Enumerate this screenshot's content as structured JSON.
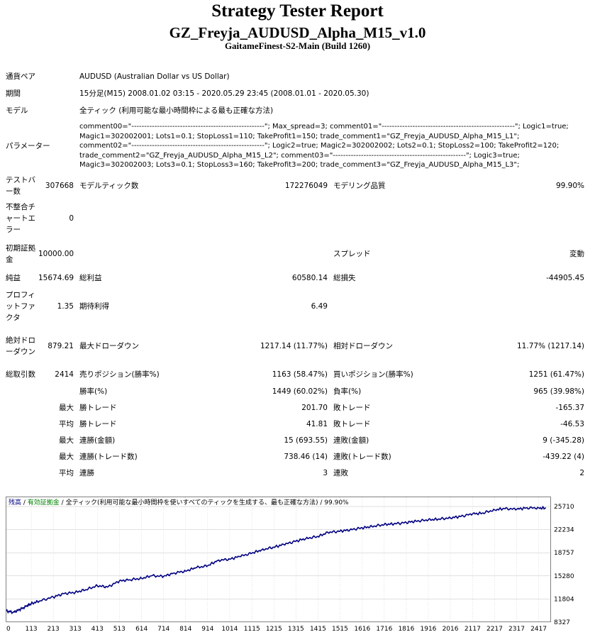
{
  "title": "Strategy Tester Report",
  "subtitle": "GZ_Freyja_AUDUSD_Alpha_M15_v1.0",
  "build": "GaitameFinest-S2-Main (Build 1260)",
  "info": {
    "pair_label": "通貨ペア",
    "pair_value": "AUDUSD (Australian Dollar vs US Dollar)",
    "period_label": "期間",
    "period_value": "15分足(M15) 2008.01.02 03:15 - 2020.05.29 23:45 (2008.01.01 - 2020.05.30)",
    "model_label": "モデル",
    "model_value": "全ティック (利用可能な最小時間枠による最も正確な方法)",
    "params_label": "パラメーター",
    "params_lines": [
      "comment00=\"----------------------------------------------------\"; Max_spread=3; comment01=\"----------------------------------------------------\"; Logic1=true;",
      "Magic1=302002001; Lots1=0.1; StopLoss1=110; TakeProfit1=150; trade_comment1=\"GZ_Freyja_AUDUSD_Alpha_M15_L1\";",
      "comment02=\"----------------------------------------------------\"; Logic2=true; Magic2=302002002; Lots2=0.1; StopLoss2=100; TakeProfit2=120;",
      "trade_comment2=\"GZ_Freyja_AUDUSD_Alpha_M15_L2\"; comment03=\"----------------------------------------------------\"; Logic3=true;",
      "Magic3=302002003; Lots3=0.1; StopLoss3=160; TakeProfit3=200; trade_comment3=\"GZ_Freyja_AUDUSD_Alpha_M15_L3\";"
    ]
  },
  "stats": {
    "test_bars_label": "テストバー数",
    "test_bars": "307668",
    "ticks_label": "モデルティック数",
    "ticks": "172276049",
    "quality_label": "モデリング品質",
    "quality": "99.90%",
    "mismatch_label": "不整合チャートエラー",
    "mismatch": "0",
    "deposit_label": "初期証拠金",
    "deposit": "10000.00",
    "spread_label": "スプレッド",
    "spread": "変動",
    "net_label": "純益",
    "net": "15674.69",
    "gross_profit_label": "総利益",
    "gross_profit": "60580.14",
    "gross_loss_label": "総損失",
    "gross_loss": "-44905.45",
    "pf_label": "プロフィットファクタ",
    "pf": "1.35",
    "expected_label": "期待利得",
    "expected": "6.49",
    "abs_dd_label": "絶対ドローダウン",
    "abs_dd": "879.21",
    "max_dd_label": "最大ドローダウン",
    "max_dd": "1217.14 (11.77%)",
    "rel_dd_label": "相対ドローダウン",
    "rel_dd": "11.77% (1217.14)",
    "total_trades_label": "総取引数",
    "total_trades": "2414",
    "short_label": "売りポジション(勝率%)",
    "short": "1163 (58.47%)",
    "long_label": "買いポジション(勝率%)",
    "long": "1251 (61.47%)",
    "win_label": "勝率(%)",
    "win": "1449 (60.02%)",
    "loss_label": "負率(%)",
    "loss": "965 (39.98%)",
    "max_label": "最大",
    "avg_label": "平均",
    "largest_win_label": "勝トレード",
    "largest_win": "201.70",
    "largest_loss_label": "敗トレード",
    "largest_loss": "-165.37",
    "avg_win_label": "勝トレード",
    "avg_win": "41.81",
    "avg_loss_label": "敗トレード",
    "avg_loss": "-46.53",
    "max_cons_win_label": "連勝(金額)",
    "max_cons_win": "15 (693.55)",
    "max_cons_loss_label": "連敗(金額)",
    "max_cons_loss": "9 (-345.28)",
    "max_cons_profit_label": "連勝(トレード数)",
    "max_cons_profit": "738.46 (14)",
    "max_cons_lossamt_label": "連敗(トレード数)",
    "max_cons_lossamt": "-439.22 (4)",
    "avg_cons_win_label": "連勝",
    "avg_cons_win": "3",
    "avg_cons_loss_label": "連敗",
    "avg_cons_loss": "2"
  },
  "chart_data": {
    "type": "line",
    "legend": {
      "balance": "残高",
      "sep1": " / ",
      "equity": "有効証拠金",
      "sep2": " / ",
      "model": "全ティック(利用可能な最小時間枠を使いすべてのティックを生成する、最も正確な方法)",
      "sep3": " / ",
      "quality": "99.90%"
    },
    "x_ticks": [
      "0",
      "113",
      "213",
      "313",
      "413",
      "513",
      "614",
      "714",
      "814",
      "914",
      "1014",
      "1115",
      "1215",
      "1315",
      "1415",
      "1515",
      "1616",
      "1716",
      "1816",
      "1916",
      "2016",
      "2117",
      "2217",
      "2317",
      "2417"
    ],
    "y_ticks": [
      "25710",
      "22234",
      "18757",
      "15280",
      "11804",
      "8327"
    ],
    "xlim": [
      0,
      2470
    ],
    "ylim": [
      8327,
      27100
    ],
    "colors": {
      "balance": "#000080",
      "equity": "#008000",
      "grid": "#c0c0c0"
    },
    "series": [
      {
        "name": "残高",
        "x": [
          0,
          30,
          60,
          90,
          113,
          150,
          213,
          260,
          313,
          360,
          413,
          460,
          513,
          560,
          614,
          660,
          714,
          760,
          814,
          860,
          914,
          960,
          1014,
          1060,
          1115,
          1160,
          1215,
          1260,
          1315,
          1360,
          1415,
          1460,
          1515,
          1560,
          1616,
          1660,
          1716,
          1760,
          1816,
          1860,
          1916,
          1960,
          2016,
          2060,
          2117,
          2160,
          2217,
          2260,
          2317,
          2360,
          2417,
          2450
        ],
        "y": [
          10000,
          9800,
          10200,
          10700,
          11100,
          11500,
          12100,
          12600,
          12800,
          13200,
          13800,
          13600,
          14500,
          14700,
          14900,
          15300,
          15200,
          15700,
          16000,
          16500,
          16800,
          17600,
          17800,
          18200,
          18700,
          19200,
          19600,
          20000,
          20500,
          20900,
          21200,
          21800,
          22000,
          22200,
          22500,
          22700,
          23000,
          23100,
          23300,
          23500,
          23700,
          23800,
          24000,
          24200,
          24600,
          24700,
          25200,
          25400,
          25300,
          25500,
          25500,
          25450
        ]
      }
    ]
  }
}
